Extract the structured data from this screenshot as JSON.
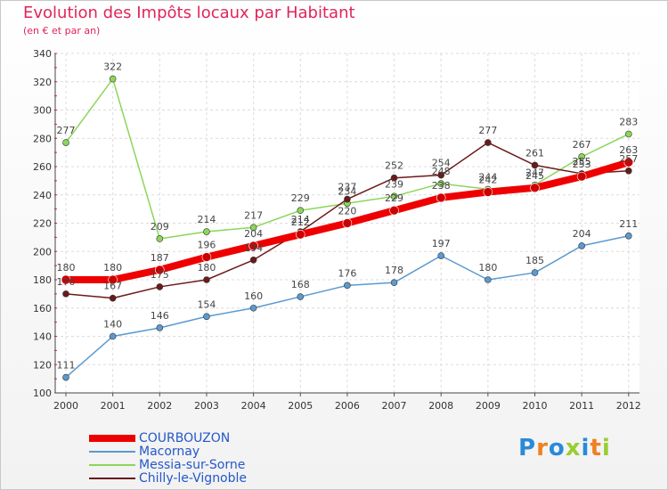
{
  "chart_data": {
    "type": "line",
    "title": "Evolution des Impôts locaux par Habitant",
    "subtitle": "(en € et par an)",
    "xlabel": "",
    "ylabel": "",
    "ylim": [
      100,
      340
    ],
    "yticks": [
      100,
      120,
      140,
      160,
      180,
      200,
      220,
      240,
      260,
      280,
      300,
      320,
      340
    ],
    "categories": [
      "2000",
      "2001",
      "2002",
      "2003",
      "2004",
      "2005",
      "2006",
      "2007",
      "2008",
      "2009",
      "2010",
      "2011",
      "2012"
    ],
    "grid": true,
    "legend_position": "bottom-left",
    "series": [
      {
        "name": "COURBOUZON",
        "color": "#ee0000",
        "values": [
          180,
          180,
          187,
          196,
          204,
          212,
          220,
          229,
          238,
          242,
          245,
          253,
          263
        ]
      },
      {
        "name": "Macornay",
        "color": "#5a9ad0",
        "values": [
          111,
          140,
          146,
          154,
          160,
          168,
          176,
          178,
          197,
          180,
          185,
          204,
          211
        ]
      },
      {
        "name": "Messia-sur-Sorne",
        "color": "#8cd65a",
        "values": [
          277,
          322,
          209,
          214,
          217,
          229,
          234,
          239,
          248,
          244,
          247,
          267,
          283
        ]
      },
      {
        "name": "Chilly-le-Vignoble",
        "color": "#6b1a1a",
        "values": [
          170,
          167,
          175,
          180,
          194,
          214,
          237,
          252,
          254,
          277,
          261,
          255,
          257
        ]
      }
    ]
  },
  "brand": {
    "letters": [
      "P",
      "r",
      "o",
      "x",
      "i",
      "t",
      "i"
    ],
    "colors": [
      "#2a8ad8",
      "#f08020",
      "#2a8ad8",
      "#9acd32",
      "#2a8ad8",
      "#f08020",
      "#9acd32"
    ]
  }
}
